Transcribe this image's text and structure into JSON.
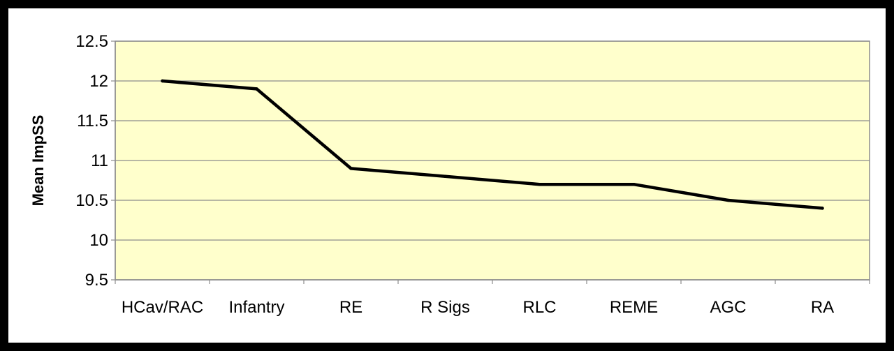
{
  "chart_data": {
    "type": "line",
    "title": "",
    "xlabel": "",
    "ylabel": "Mean ImpSS",
    "categories": [
      "HCav/RAC",
      "Infantry",
      "RE",
      "R Sigs",
      "RLC",
      "REME",
      "AGC",
      "RA"
    ],
    "series": [
      {
        "values": [
          12.0,
          11.9,
          10.9,
          10.8,
          10.7,
          10.7,
          10.5,
          10.4
        ]
      }
    ],
    "ylim": [
      9.5,
      12.5
    ],
    "yticks": [
      9.5,
      10,
      10.5,
      11,
      11.5,
      12,
      12.5
    ],
    "ytick_labels": [
      "9.5",
      "10",
      "10.5",
      "11",
      "11.5",
      "12",
      "12.5"
    ],
    "grid": "horizontal",
    "legend": "none",
    "colors": {
      "plot_background": "#ffffcc",
      "frame_background": "#ffffff",
      "border": "#000000",
      "line": "#000000",
      "gridline": "#8c8c8c"
    }
  }
}
